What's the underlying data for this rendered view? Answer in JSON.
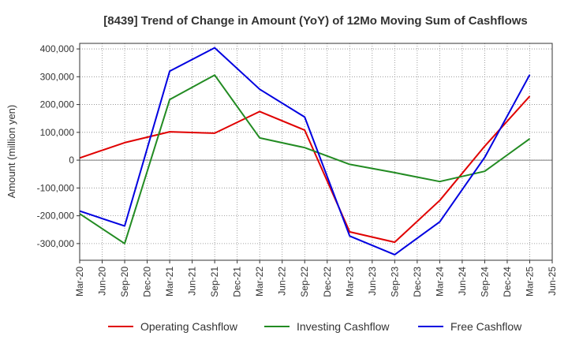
{
  "chart_data": {
    "type": "line",
    "title": "[8439]  Trend of Change in Amount (YoY) of 12Mo Moving Sum of Cashflows",
    "ylabel": "Amount (million yen)",
    "xlabel": "",
    "ylim": [
      -360000,
      420000
    ],
    "yticks": [
      400000,
      300000,
      200000,
      100000,
      0,
      -100000,
      -200000,
      -300000
    ],
    "ytick_labels": [
      "400,000",
      "300,000",
      "200,000",
      "100,000",
      "0",
      "-100,000",
      "-200,000",
      "-300,000"
    ],
    "x_ticks": [
      "Mar-20",
      "Jun-20",
      "Sep-20",
      "Dec-20",
      "Mar-21",
      "Jun-21",
      "Sep-21",
      "Dec-21",
      "Mar-22",
      "Jun-22",
      "Sep-22",
      "Dec-22",
      "Mar-23",
      "Jun-23",
      "Sep-23",
      "Dec-23",
      "Mar-24",
      "Jun-24",
      "Sep-24",
      "Dec-24",
      "Mar-25",
      "Jun-25"
    ],
    "x": [
      "Mar-20",
      "Sep-20",
      "Mar-21",
      "Sep-21",
      "Mar-22",
      "Sep-22",
      "Mar-23",
      "Sep-23",
      "Mar-24",
      "Sep-24",
      "Mar-25"
    ],
    "grid": true,
    "legend_position": "bottom",
    "series": [
      {
        "name": "Operating Cashflow",
        "color": "#e00000",
        "values": [
          8000,
          63000,
          102000,
          97000,
          175000,
          108000,
          -258000,
          -295000,
          -145000,
          50000,
          230000
        ]
      },
      {
        "name": "Investing Cashflow",
        "color": "#228b22",
        "values": [
          -193000,
          -300000,
          218000,
          306000,
          80000,
          45000,
          -15000,
          -45000,
          -77000,
          -40000,
          77000
        ]
      },
      {
        "name": "Free Cashflow",
        "color": "#0000e0",
        "values": [
          -183000,
          -237000,
          320000,
          404000,
          255000,
          155000,
          -273000,
          -340000,
          -222000,
          10000,
          307000
        ]
      }
    ]
  }
}
